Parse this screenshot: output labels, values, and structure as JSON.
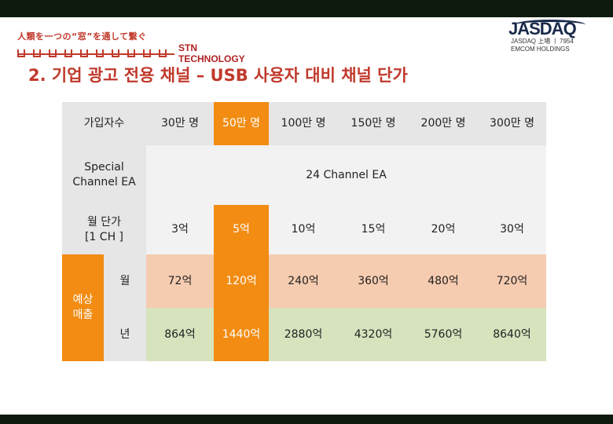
{
  "header": {
    "slogan": "人類を一つの“窓”を通して繋ぐ",
    "brand_name": "STN TECHNOLOGY",
    "logo": "JASDAQ",
    "logo_sub1": "JASDAQ 上場 ㅣ 7954",
    "logo_sub2": "EMCOM HOLDINGS"
  },
  "page_title": "2. 기업 광고 전용 채널 – USB 사용자 대비 채널 단가",
  "table": {
    "row_labels": {
      "subscribers": "가입자수",
      "special": "Special\nChannel EA",
      "unit_price": "월 단가\n[1 CH ]",
      "expected": "예상\n매출",
      "monthly": "월",
      "yearly": "년"
    },
    "subscribers": [
      "30만 명",
      "50만 명",
      "100만 명",
      "150만 명",
      "200만 명",
      "300만 명"
    ],
    "channel_ea": "24 Channel EA",
    "unit_price": [
      "3억",
      "5억",
      "10억",
      "15억",
      "20억",
      "30억"
    ],
    "monthly": [
      "72억",
      "120억",
      "240억",
      "360억",
      "480억",
      "720억"
    ],
    "yearly": [
      "864억",
      "1440억",
      "2880억",
      "4320억",
      "5760억",
      "8640억"
    ],
    "colors": {
      "highlight": "#f28c13",
      "label_bg": "#e6e6e6",
      "monthly_bg": "#f6ccb0",
      "yearly_bg": "#d6e3bd"
    }
  }
}
